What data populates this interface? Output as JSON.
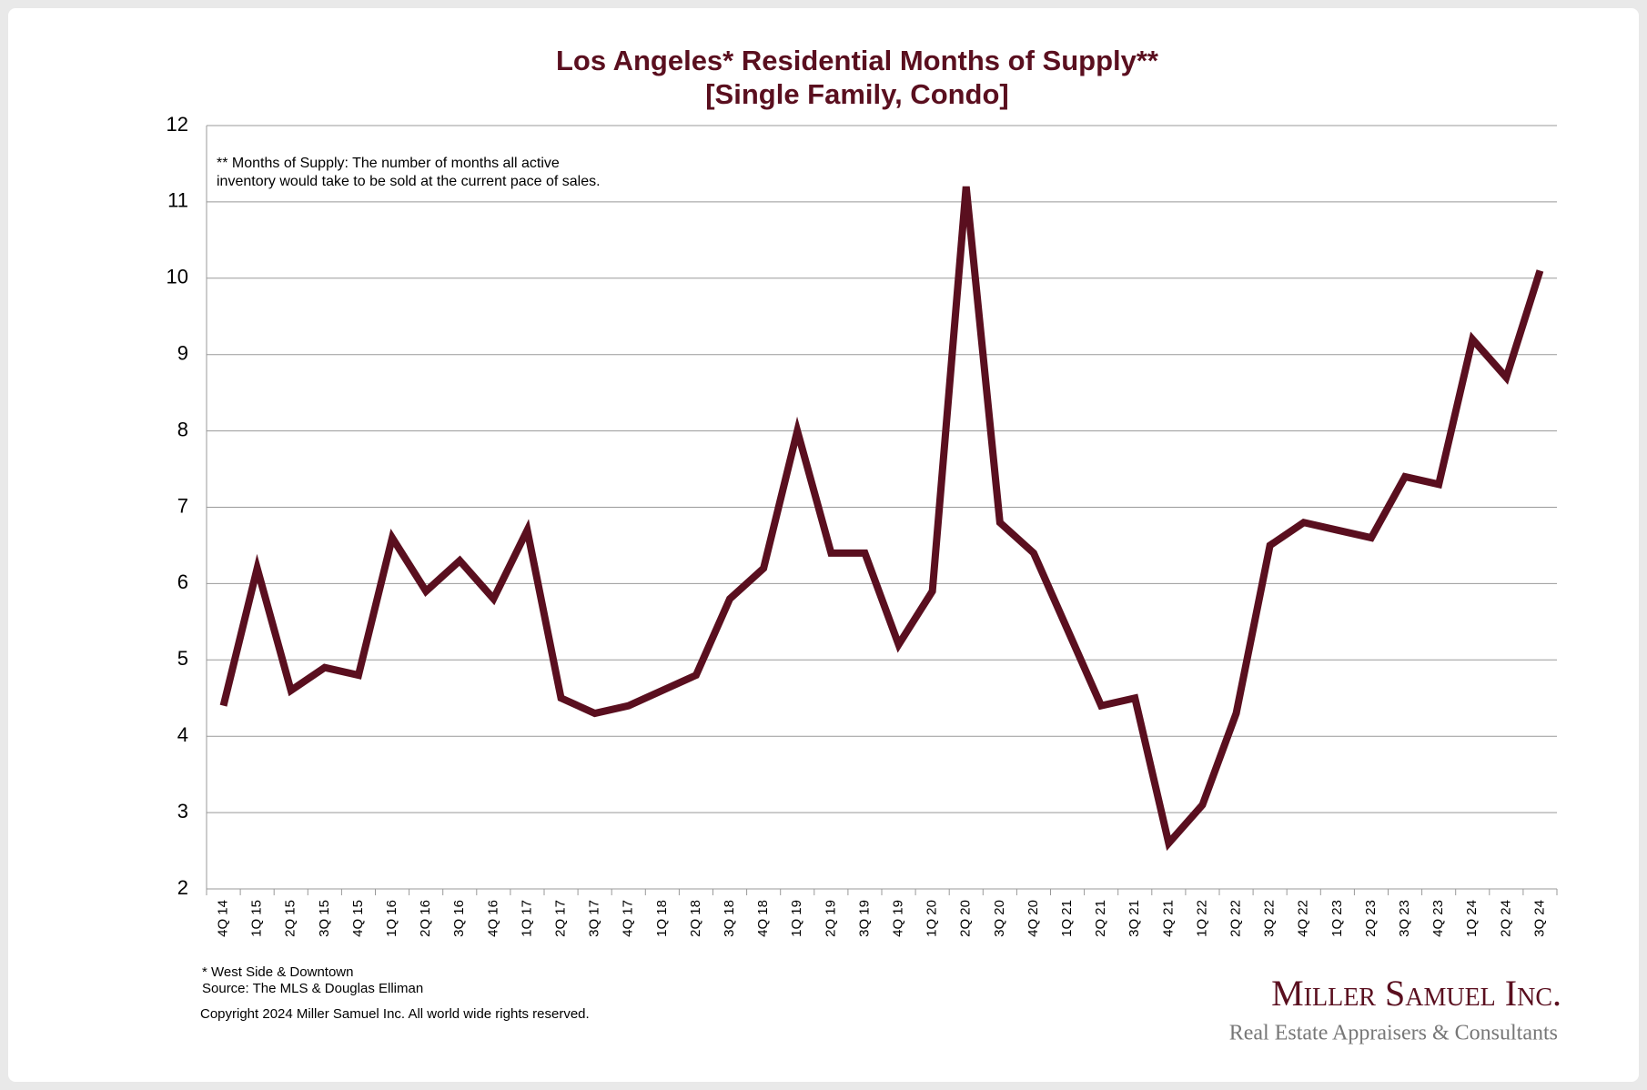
{
  "chart_data": {
    "type": "line",
    "title": "Los Angeles* Residential Months of Supply**",
    "subtitle": "[Single Family, Condo]",
    "annotation": [
      "** Months of Supply: The number of months all active",
      "inventory would take to be sold at the current pace of sales."
    ],
    "footnotes": [
      "* West Side & Downtown",
      "Source: The MLS & Douglas Elliman",
      "Copyright 2024 Miller Samuel Inc.  All world wide rights reserved."
    ],
    "logo": {
      "name": "Miller Samuel Inc.",
      "tagline": "Real Estate Appraisers & Consultants"
    },
    "categories": [
      "4Q 14",
      "1Q 15",
      "2Q 15",
      "3Q 15",
      "4Q 15",
      "1Q 16",
      "2Q 16",
      "3Q 16",
      "4Q 16",
      "1Q 17",
      "2Q 17",
      "3Q 17",
      "4Q 17",
      "1Q 18",
      "2Q 18",
      "3Q 18",
      "4Q 18",
      "1Q 19",
      "2Q 19",
      "3Q 19",
      "4Q 19",
      "1Q 20",
      "2Q 20",
      "3Q 20",
      "4Q 20",
      "1Q 21",
      "2Q 21",
      "3Q 21",
      "4Q 21",
      "1Q 22",
      "2Q 22",
      "3Q 22",
      "4Q 22",
      "1Q 23",
      "2Q 23",
      "3Q 23",
      "4Q 23",
      "1Q 24",
      "2Q 24",
      "3Q 24"
    ],
    "series": [
      {
        "color": "#5a0f1f",
        "values": [
          4.4,
          6.2,
          4.6,
          4.9,
          4.8,
          6.6,
          5.9,
          6.3,
          5.8,
          6.7,
          4.5,
          4.3,
          4.4,
          4.6,
          4.8,
          5.8,
          6.2,
          8.0,
          6.4,
          6.4,
          5.2,
          5.9,
          11.2,
          6.8,
          6.4,
          5.4,
          4.4,
          4.5,
          2.6,
          3.1,
          4.3,
          6.5,
          6.8,
          6.7,
          6.6,
          7.4,
          7.3,
          9.2,
          8.7,
          10.1
        ]
      }
    ],
    "ylim": [
      2,
      12
    ],
    "yticks": [
      2,
      3,
      4,
      5,
      6,
      7,
      8,
      9,
      10,
      11,
      12
    ],
    "grid": true
  }
}
